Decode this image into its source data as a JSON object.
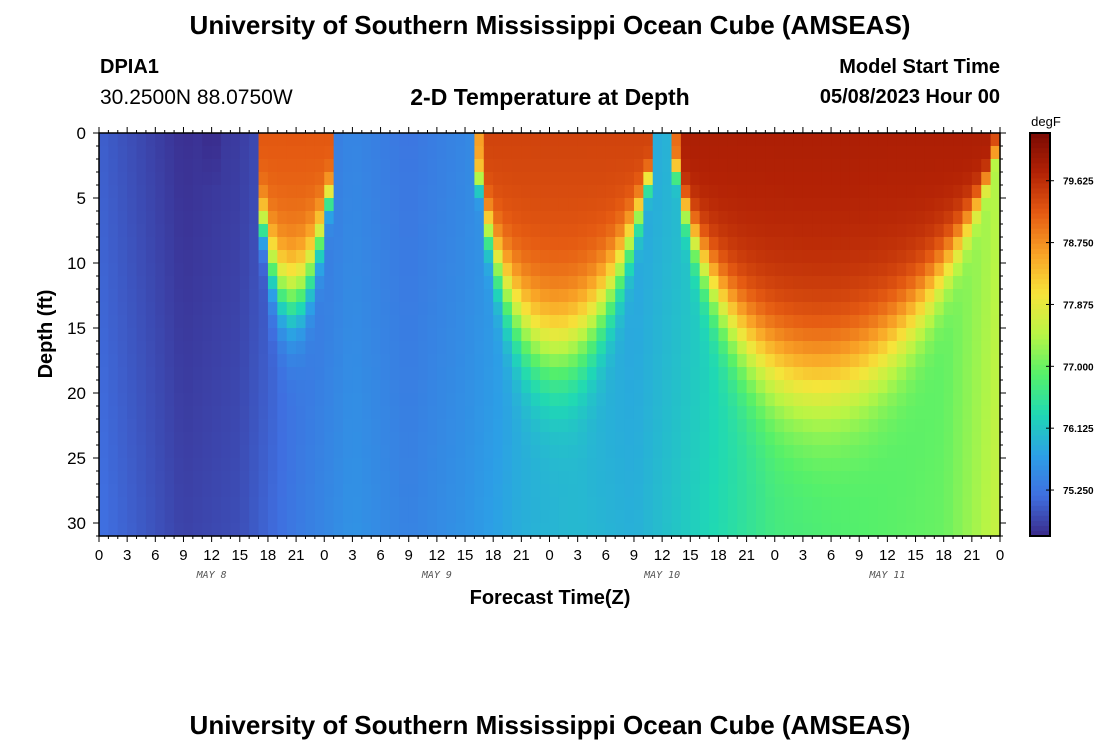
{
  "header": {
    "title": "University of Southern Mississippi Ocean Cube (AMSEAS)",
    "station_id": "DPIA1",
    "coordinates": "30.2500N  88.0750W",
    "plot_title": "2-D Temperature at Depth",
    "model_start_label": "Model Start Time",
    "model_start_value": "05/08/2023 Hour 00"
  },
  "footer": {
    "title": "University of Southern Mississippi Ocean Cube (AMSEAS)"
  },
  "colors": {
    "scale": [
      "#3a2a8a",
      "#3f6fe0",
      "#2c9fe6",
      "#1fd8b5",
      "#55f06a",
      "#b8f545",
      "#f7e43a",
      "#f9a326",
      "#e55b12",
      "#b32205",
      "#7a0a03"
    ]
  },
  "chart_data": {
    "type": "heatmap",
    "xlabel": "Forecast Time(Z)",
    "ylabel": "Depth (ft)",
    "xlim": [
      0,
      96
    ],
    "ylim": [
      31,
      0
    ],
    "y_ticks": [
      0,
      5,
      10,
      15,
      20,
      25,
      30
    ],
    "x_ticks": [
      {
        "h": 0,
        "label": "0"
      },
      {
        "h": 3,
        "label": "3"
      },
      {
        "h": 6,
        "label": "6"
      },
      {
        "h": 9,
        "label": "9"
      },
      {
        "h": 12,
        "label": "12"
      },
      {
        "h": 15,
        "label": "15"
      },
      {
        "h": 18,
        "label": "18"
      },
      {
        "h": 21,
        "label": "21"
      },
      {
        "h": 24,
        "label": "0"
      },
      {
        "h": 27,
        "label": "3"
      },
      {
        "h": 30,
        "label": "6"
      },
      {
        "h": 33,
        "label": "9"
      },
      {
        "h": 36,
        "label": "12"
      },
      {
        "h": 39,
        "label": "15"
      },
      {
        "h": 42,
        "label": "18"
      },
      {
        "h": 45,
        "label": "21"
      },
      {
        "h": 48,
        "label": "0"
      },
      {
        "h": 51,
        "label": "3"
      },
      {
        "h": 54,
        "label": "6"
      },
      {
        "h": 57,
        "label": "9"
      },
      {
        "h": 60,
        "label": "12"
      },
      {
        "h": 63,
        "label": "15"
      },
      {
        "h": 66,
        "label": "18"
      },
      {
        "h": 69,
        "label": "21"
      },
      {
        "h": 72,
        "label": "0"
      },
      {
        "h": 75,
        "label": "3"
      },
      {
        "h": 78,
        "label": "6"
      },
      {
        "h": 81,
        "label": "9"
      },
      {
        "h": 84,
        "label": "12"
      },
      {
        "h": 87,
        "label": "15"
      },
      {
        "h": 90,
        "label": "18"
      },
      {
        "h": 93,
        "label": "21"
      },
      {
        "h": 96,
        "label": "0"
      }
    ],
    "day_labels": [
      {
        "h": 12,
        "label": "MAY 8"
      },
      {
        "h": 36,
        "label": "MAY 9"
      },
      {
        "h": 60,
        "label": "MAY 10"
      },
      {
        "h": 84,
        "label": "MAY 11"
      }
    ],
    "colorbar": {
      "unit": "degF",
      "min": 74.6,
      "max": 80.3,
      "ticks": [
        75.25,
        76.125,
        77.0,
        77.875,
        78.75,
        79.625
      ],
      "tick_labels": [
        "75.250",
        "76.125",
        "77.000",
        "77.875",
        "78.750",
        "79.625"
      ]
    },
    "warm_tongues": [
      {
        "start_h": 16.5,
        "end_h": 25.5,
        "bottom_depth": 12.5,
        "surface_temp": 79.2
      },
      {
        "start_h": 40.0,
        "end_h": 59.5,
        "bottom_depth": 16.5,
        "surface_temp": 79.4
      },
      {
        "start_h": 61.0,
        "end_h": 96.0,
        "bottom_depth": 19.0,
        "surface_temp": 79.8
      }
    ],
    "cold_spot": {
      "h": 12,
      "depth_range": [
        0,
        4
      ],
      "temp": 74.6
    },
    "bottom_profile_degF": [
      [
        0,
        75.2
      ],
      [
        9,
        74.8
      ],
      [
        15,
        74.9
      ],
      [
        21,
        75.3
      ],
      [
        27,
        75.6
      ],
      [
        33,
        75.4
      ],
      [
        39,
        75.6
      ],
      [
        45,
        75.9
      ],
      [
        51,
        76.0
      ],
      [
        57,
        75.9
      ],
      [
        63,
        76.2
      ],
      [
        67,
        76.4
      ],
      [
        72,
        76.7
      ],
      [
        78,
        76.8
      ],
      [
        84,
        76.9
      ],
      [
        90,
        77.0
      ],
      [
        96,
        77.6
      ]
    ]
  }
}
